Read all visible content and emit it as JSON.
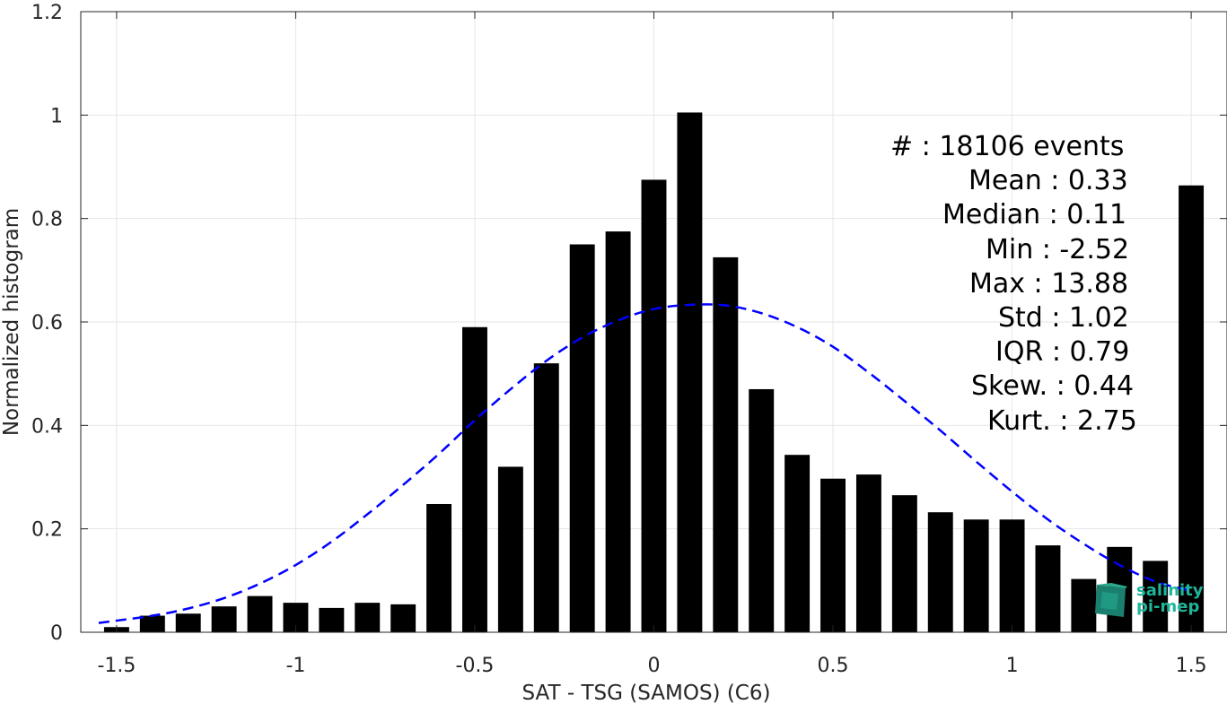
{
  "chart_data": {
    "type": "bar",
    "xlabel": "SAT - TSG (SAMOS) (C6)",
    "ylabel": "Normalized histogram",
    "xlim": [
      -1.6,
      1.6
    ],
    "ylim": [
      0,
      1.2
    ],
    "xticks": [
      -1.5,
      -1,
      -0.5,
      0,
      0.5,
      1,
      1.5
    ],
    "xtick_labels": [
      "-1.5",
      "-1",
      "-0.5",
      "0",
      "0.5",
      "1",
      "1.5"
    ],
    "yticks": [
      0,
      0.2,
      0.4,
      0.6,
      0.8,
      1,
      1.2
    ],
    "ytick_labels": [
      "0",
      "0.2",
      "0.4",
      "0.6",
      "0.8",
      "1",
      "1.2"
    ],
    "grid": true,
    "bar_width": 0.07,
    "bar_color": "#000000",
    "bars": {
      "x": [
        -1.5,
        -1.4,
        -1.3,
        -1.2,
        -1.1,
        -1.0,
        -0.9,
        -0.8,
        -0.7,
        -0.6,
        -0.5,
        -0.4,
        -0.3,
        -0.2,
        -0.1,
        0.0,
        0.1,
        0.2,
        0.3,
        0.4,
        0.5,
        0.6,
        0.7,
        0.8,
        0.9,
        1.0,
        1.1,
        1.2,
        1.3,
        1.4,
        1.5
      ],
      "values": [
        0.01,
        0.032,
        0.036,
        0.05,
        0.07,
        0.057,
        0.047,
        0.057,
        0.054,
        0.248,
        0.59,
        0.32,
        0.52,
        0.75,
        0.775,
        0.875,
        1.005,
        0.725,
        0.47,
        0.343,
        0.297,
        0.305,
        0.265,
        0.232,
        0.218,
        0.218,
        0.168,
        0.103,
        0.165,
        0.138,
        0.864
      ]
    },
    "fit_curve": {
      "style": "dashed",
      "color": "#0000ff",
      "x": [
        -1.55,
        -1.4,
        -1.3,
        -1.2,
        -1.1,
        -1.0,
        -0.9,
        -0.8,
        -0.7,
        -0.6,
        -0.5,
        -0.4,
        -0.3,
        -0.2,
        -0.1,
        0.0,
        0.1,
        0.2,
        0.3,
        0.4,
        0.5,
        0.6,
        0.7,
        0.8,
        0.9,
        1.0,
        1.1,
        1.2,
        1.3,
        1.4,
        1.5
      ],
      "y": [
        0.018,
        0.032,
        0.046,
        0.066,
        0.094,
        0.13,
        0.175,
        0.228,
        0.285,
        0.345,
        0.41,
        0.47,
        0.525,
        0.57,
        0.603,
        0.625,
        0.633,
        0.632,
        0.617,
        0.59,
        0.552,
        0.502,
        0.447,
        0.39,
        0.33,
        0.272,
        0.218,
        0.171,
        0.13,
        0.098,
        0.08
      ]
    },
    "stats": [
      {
        "label": "#  : 18106 events"
      },
      {
        "label": "Mean : 0.33"
      },
      {
        "label": "Median : 0.11"
      },
      {
        "label": "Min : -2.52"
      },
      {
        "label": "Max : 13.88"
      },
      {
        "label": "Std : 1.02"
      },
      {
        "label": "IQR : 0.79"
      },
      {
        "label": "Skew. : 0.44"
      },
      {
        "label": "Kurt. : 2.75"
      }
    ]
  },
  "logo": {
    "line1": "salinity",
    "line2": "pi-mep",
    "color": "#1fb59a"
  }
}
